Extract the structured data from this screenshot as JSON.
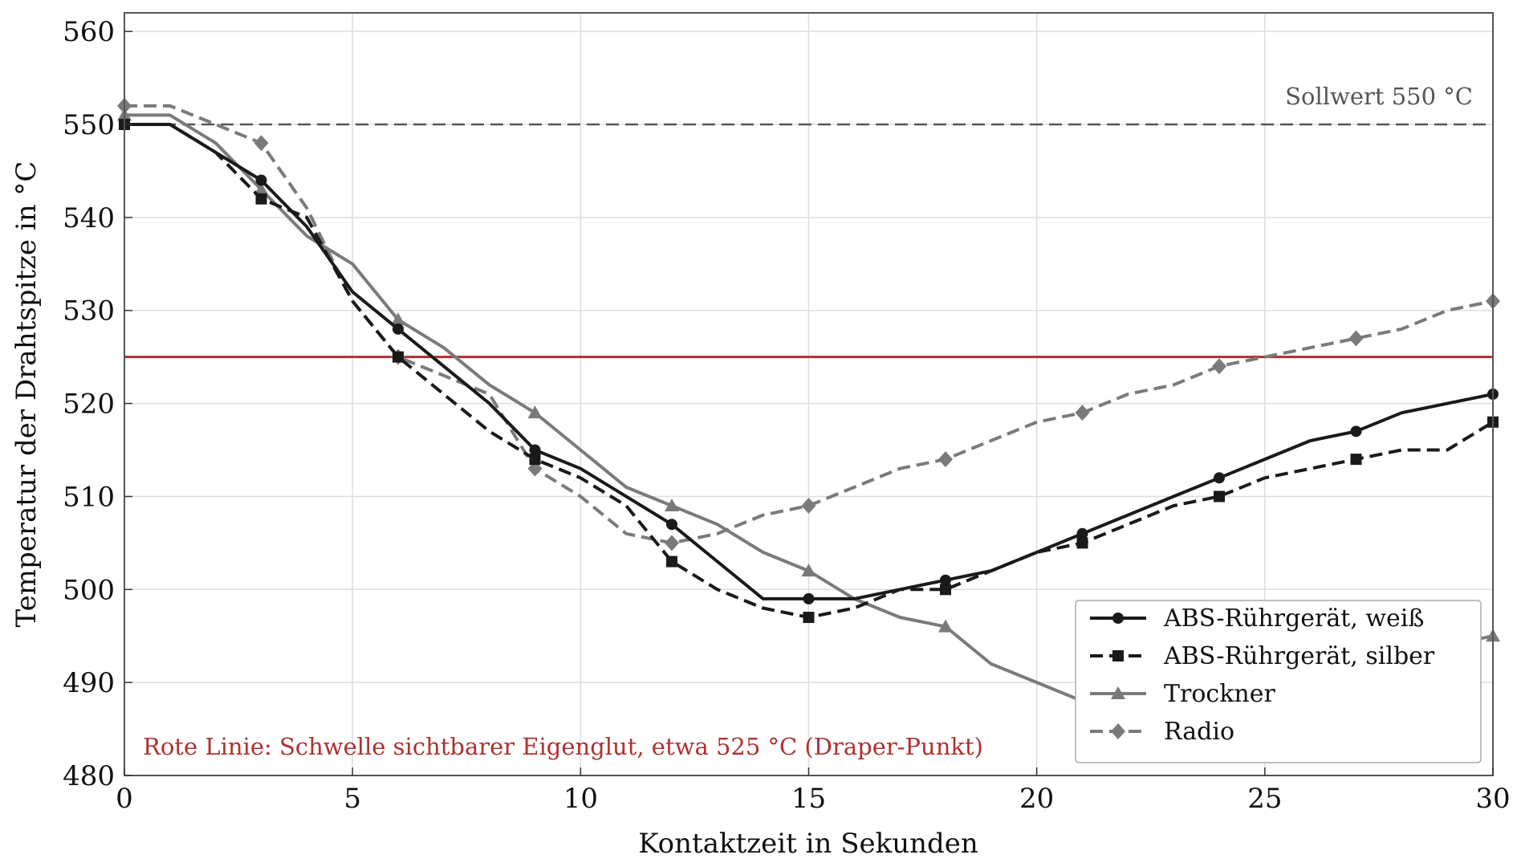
{
  "chart_data": {
    "type": "line",
    "xlabel": "Kontaktzeit in Sekunden",
    "ylabel": "Temperatur der Drahtspitze in °C",
    "xlim": [
      0,
      30
    ],
    "ylim": [
      480,
      562
    ],
    "xticks": [
      0,
      5,
      10,
      15,
      20,
      25,
      30
    ],
    "yticks": [
      480,
      490,
      500,
      510,
      520,
      530,
      540,
      550,
      560
    ],
    "grid": true,
    "legend_position": "bottom-right",
    "reference_lines": [
      {
        "y": 550,
        "label": "Sollwert 550 °C",
        "style": "dashed",
        "color": "#555555"
      },
      {
        "y": 525,
        "label": "",
        "style": "solid",
        "color": "#b03030"
      }
    ],
    "annotation": "Rote Linie: Schwelle sichtbarer Eigenglut, etwa 525 °C (Draper-Punkt)",
    "annotation_color": "#b03030",
    "series": [
      {
        "name": "ABS-Rührgerät, weiß",
        "color": "#1a1a1a",
        "dash": "solid",
        "marker": "circle",
        "x": [
          0,
          1,
          2,
          3,
          4,
          5,
          6,
          7,
          8,
          9,
          10,
          11,
          12,
          13,
          14,
          15,
          16,
          17,
          18,
          19,
          20,
          21,
          22,
          23,
          24,
          25,
          26,
          27,
          28,
          29,
          30
        ],
        "y": [
          550,
          550,
          547,
          544,
          539,
          532,
          528,
          524,
          520,
          515,
          513,
          510,
          507,
          503,
          499,
          499,
          499,
          500,
          501,
          502,
          504,
          506,
          508,
          510,
          512,
          514,
          516,
          517,
          519,
          520,
          521
        ],
        "marker_every": 3
      },
      {
        "name": "ABS-Rührgerät, silber",
        "color": "#1a1a1a",
        "dash": "dashed",
        "marker": "square",
        "x": [
          0,
          1,
          2,
          3,
          4,
          5,
          6,
          7,
          8,
          9,
          10,
          11,
          12,
          13,
          14,
          15,
          16,
          17,
          18,
          19,
          20,
          21,
          22,
          23,
          24,
          25,
          26,
          27,
          28,
          29,
          30
        ],
        "y": [
          550,
          550,
          547,
          542,
          540,
          531,
          525,
          521,
          517,
          514,
          512,
          509,
          503,
          500,
          498,
          497,
          498,
          500,
          500,
          502,
          504,
          505,
          507,
          509,
          510,
          512,
          513,
          514,
          515,
          515,
          518
        ],
        "marker_every": 3
      },
      {
        "name": "Trockner",
        "color": "#7a7a7a",
        "dash": "solid",
        "marker": "triangle",
        "x": [
          0,
          1,
          2,
          3,
          4,
          5,
          6,
          7,
          8,
          9,
          10,
          11,
          12,
          13,
          14,
          15,
          16,
          17,
          18,
          19,
          20,
          21,
          22,
          23,
          24,
          25,
          26,
          27,
          28,
          29,
          30
        ],
        "y": [
          551,
          551,
          548,
          543,
          538,
          535,
          529,
          526,
          522,
          519,
          515,
          511,
          509,
          507,
          504,
          502,
          499,
          497,
          496,
          492,
          490,
          488,
          488,
          488,
          489,
          490,
          491,
          492,
          493,
          494,
          495
        ],
        "marker_every": 3
      },
      {
        "name": "Radio",
        "color": "#7a7a7a",
        "dash": "dashed",
        "marker": "diamond",
        "x": [
          0,
          1,
          2,
          3,
          4,
          5,
          6,
          7,
          8,
          9,
          10,
          11,
          12,
          13,
          14,
          15,
          16,
          17,
          18,
          19,
          20,
          21,
          22,
          23,
          24,
          25,
          26,
          27,
          28,
          29,
          30
        ],
        "y": [
          552,
          552,
          550,
          548,
          541,
          531,
          525,
          523,
          521,
          513,
          510,
          506,
          505,
          506,
          508,
          509,
          511,
          513,
          514,
          516,
          518,
          519,
          521,
          522,
          524,
          525,
          526,
          527,
          528,
          530,
          531
        ],
        "marker_every": 3
      }
    ]
  }
}
